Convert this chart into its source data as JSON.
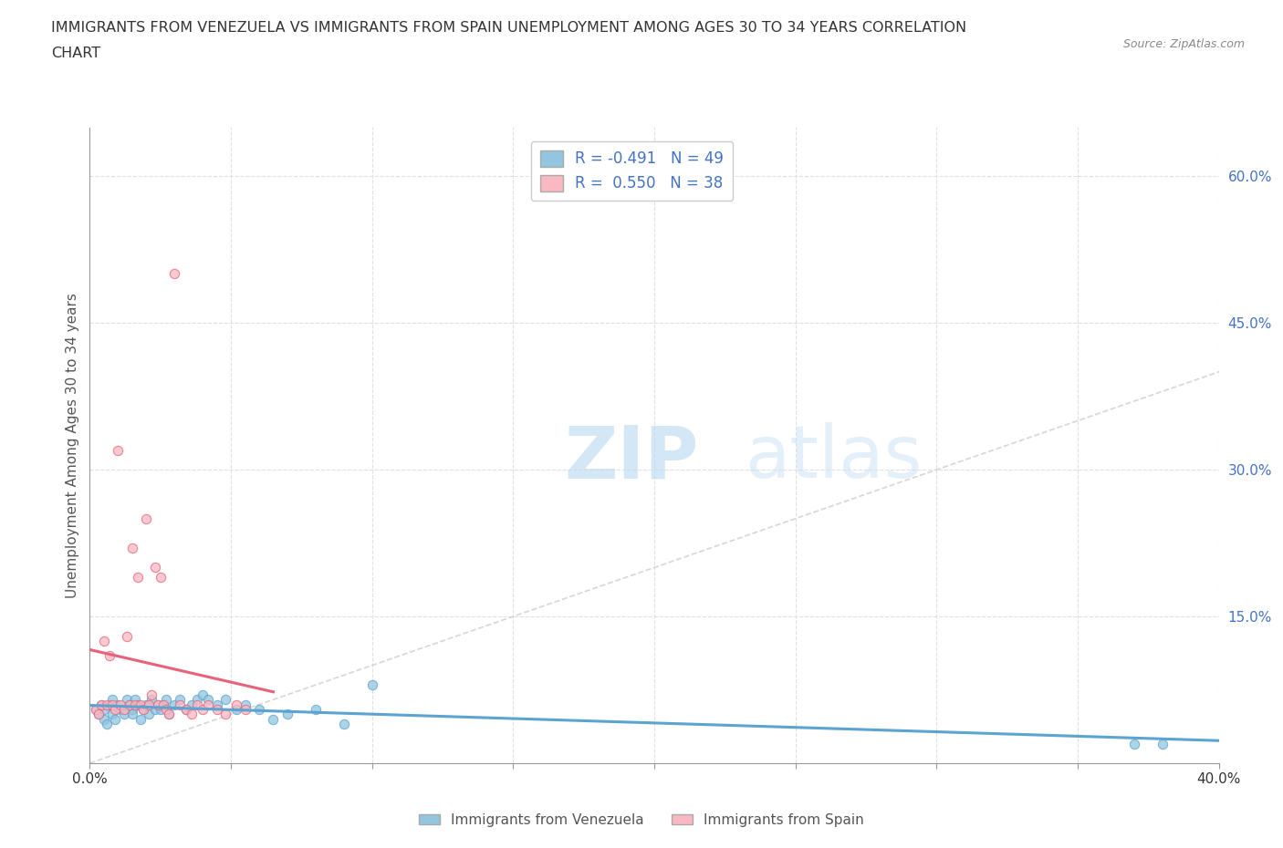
{
  "title_line1": "IMMIGRANTS FROM VENEZUELA VS IMMIGRANTS FROM SPAIN UNEMPLOYMENT AMONG AGES 30 TO 34 YEARS CORRELATION",
  "title_line2": "CHART",
  "source": "Source: ZipAtlas.com",
  "ylabel": "Unemployment Among Ages 30 to 34 years",
  "xlim": [
    0.0,
    0.4
  ],
  "ylim": [
    0.0,
    0.65
  ],
  "yticks_right": [
    0.0,
    0.15,
    0.3,
    0.45,
    0.6
  ],
  "ytick_right_labels": [
    "",
    "15.0%",
    "30.0%",
    "45.0%",
    "60.0%"
  ],
  "watermark_zip": "ZIP",
  "watermark_atlas": "atlas",
  "legend_blue_label": "Immigrants from Venezuela",
  "legend_pink_label": "Immigrants from Spain",
  "R_blue": -0.491,
  "N_blue": 49,
  "R_pink": 0.55,
  "N_pink": 38,
  "blue_color": "#92C5DE",
  "pink_color": "#F9B8C2",
  "blue_line_color": "#5BA3D0",
  "pink_line_color": "#E8637A",
  "blue_scatter_x": [
    0.002,
    0.003,
    0.004,
    0.005,
    0.005,
    0.006,
    0.007,
    0.008,
    0.008,
    0.009,
    0.01,
    0.011,
    0.012,
    0.013,
    0.014,
    0.015,
    0.015,
    0.016,
    0.017,
    0.018,
    0.019,
    0.02,
    0.021,
    0.022,
    0.023,
    0.024,
    0.025,
    0.026,
    0.027,
    0.028,
    0.03,
    0.032,
    0.034,
    0.036,
    0.038,
    0.04,
    0.042,
    0.045,
    0.048,
    0.052,
    0.055,
    0.06,
    0.065,
    0.07,
    0.08,
    0.09,
    0.1,
    0.37,
    0.38
  ],
  "blue_scatter_y": [
    0.055,
    0.05,
    0.06,
    0.045,
    0.055,
    0.04,
    0.06,
    0.05,
    0.065,
    0.045,
    0.06,
    0.055,
    0.05,
    0.065,
    0.06,
    0.055,
    0.05,
    0.065,
    0.06,
    0.045,
    0.055,
    0.06,
    0.05,
    0.065,
    0.055,
    0.06,
    0.055,
    0.06,
    0.065,
    0.05,
    0.06,
    0.065,
    0.055,
    0.06,
    0.065,
    0.07,
    0.065,
    0.06,
    0.065,
    0.055,
    0.06,
    0.055,
    0.045,
    0.05,
    0.055,
    0.04,
    0.08,
    0.02,
    0.02
  ],
  "pink_scatter_x": [
    0.002,
    0.003,
    0.004,
    0.005,
    0.006,
    0.007,
    0.008,
    0.009,
    0.01,
    0.011,
    0.012,
    0.013,
    0.014,
    0.015,
    0.016,
    0.017,
    0.018,
    0.019,
    0.02,
    0.021,
    0.022,
    0.023,
    0.024,
    0.025,
    0.026,
    0.027,
    0.028,
    0.03,
    0.032,
    0.034,
    0.036,
    0.038,
    0.04,
    0.042,
    0.045,
    0.048,
    0.052,
    0.055
  ],
  "pink_scatter_y": [
    0.055,
    0.05,
    0.06,
    0.125,
    0.06,
    0.11,
    0.06,
    0.055,
    0.32,
    0.06,
    0.055,
    0.13,
    0.06,
    0.22,
    0.06,
    0.19,
    0.06,
    0.055,
    0.25,
    0.06,
    0.07,
    0.2,
    0.06,
    0.19,
    0.06,
    0.055,
    0.05,
    0.5,
    0.06,
    0.055,
    0.05,
    0.06,
    0.055,
    0.06,
    0.055,
    0.05,
    0.06,
    0.055
  ],
  "background_color": "#ffffff",
  "grid_color": "#e0e0e0"
}
